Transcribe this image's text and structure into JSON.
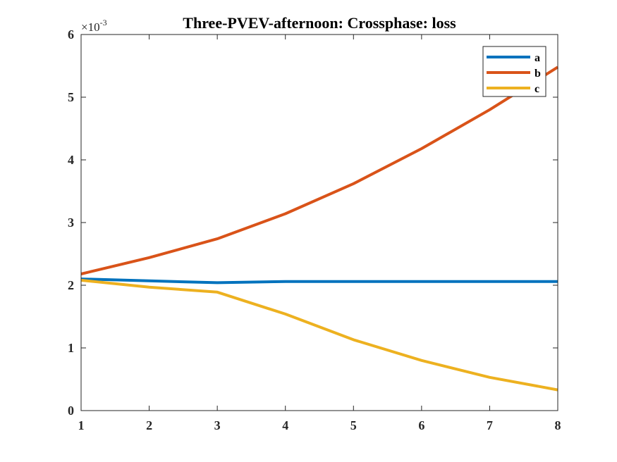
{
  "chart_data": {
    "type": "line",
    "title": "Three-PVEV-afternoon: Crossphase: loss",
    "xlabel": "",
    "ylabel": "",
    "x": [
      1,
      2,
      3,
      4,
      5,
      6,
      7,
      8
    ],
    "xlim": [
      1,
      8
    ],
    "ylim": [
      0,
      0.006
    ],
    "x_ticks": [
      "1",
      "2",
      "3",
      "4",
      "5",
      "6",
      "7",
      "8"
    ],
    "y_ticks": [
      "0",
      "1",
      "2",
      "3",
      "4",
      "5",
      "6"
    ],
    "y_exponent_label": "×10",
    "y_exponent_power": "-3",
    "grid": false,
    "legend_position": "top-right",
    "series": [
      {
        "name": "a",
        "color": "#0072BD",
        "values": [
          0.0021,
          0.00207,
          0.00204,
          0.00206,
          0.00206,
          0.00206,
          0.00206,
          0.00206
        ]
      },
      {
        "name": "b",
        "color": "#D95319",
        "values": [
          0.00218,
          0.00244,
          0.00274,
          0.00314,
          0.00362,
          0.00418,
          0.0048,
          0.00548
        ]
      },
      {
        "name": "c",
        "color": "#EDB120",
        "values": [
          0.00208,
          0.00197,
          0.00189,
          0.00154,
          0.00113,
          0.0008,
          0.00053,
          0.00033
        ]
      }
    ]
  }
}
